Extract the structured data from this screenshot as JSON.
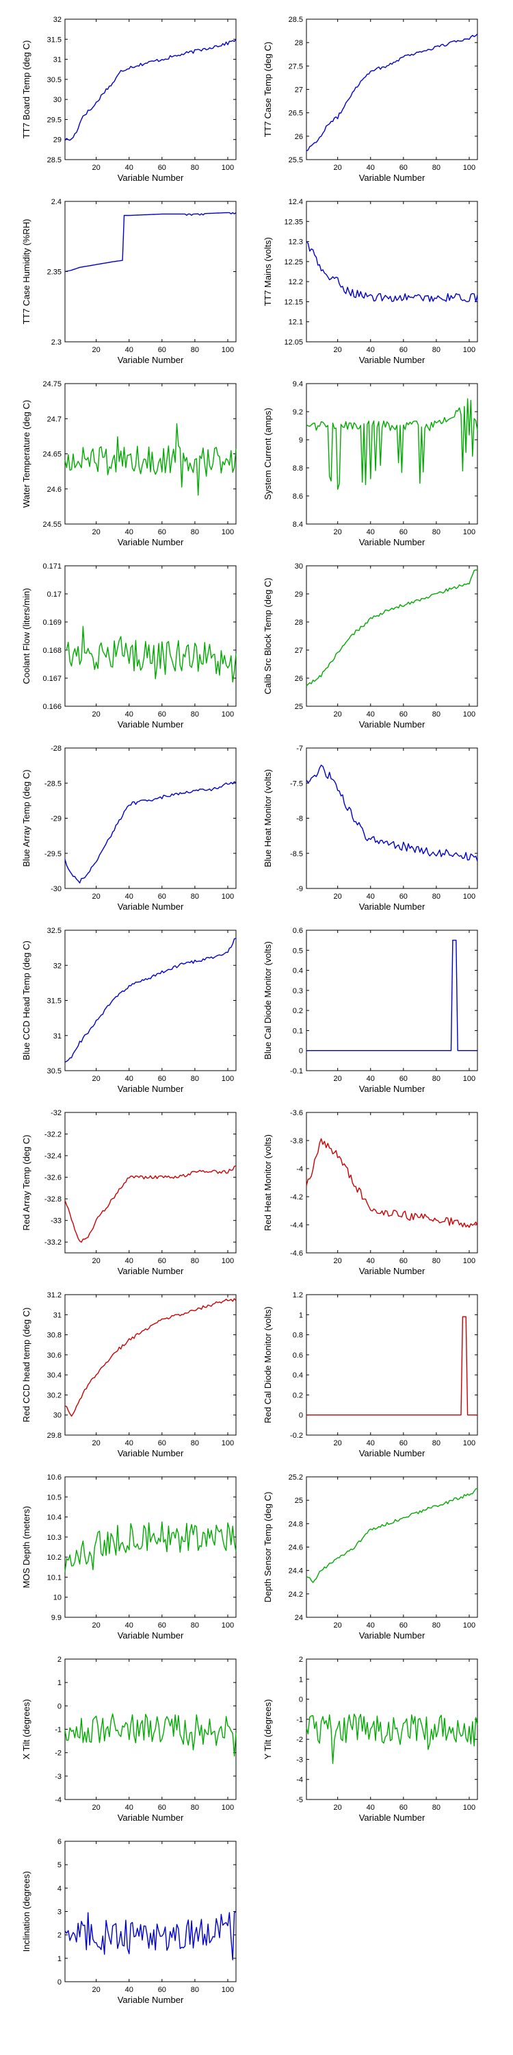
{
  "chart_data": [
    {
      "type": "line",
      "ylabel": "TT7 Board Temp (deg C)",
      "xlabel": "Variable Number",
      "xlim": [
        1,
        105
      ],
      "ylim": [
        28.5,
        32
      ],
      "xticks": [
        20,
        40,
        60,
        80,
        100
      ],
      "yticks": [
        28.5,
        29,
        29.5,
        30,
        30.5,
        31,
        31.5,
        32
      ],
      "color": "#0000cc",
      "pattern": "trend",
      "x": [
        1,
        5,
        8,
        12,
        18,
        25,
        30,
        35,
        40,
        60,
        80,
        100,
        105
      ],
      "y": [
        29.0,
        29.0,
        29.2,
        29.6,
        29.8,
        30.2,
        30.4,
        30.7,
        30.8,
        31.0,
        31.2,
        31.4,
        31.5
      ]
    },
    {
      "type": "line",
      "ylabel": "TT7 Case Temp (deg C)",
      "xlabel": "Variable Number",
      "xlim": [
        1,
        105
      ],
      "ylim": [
        25.5,
        28.5
      ],
      "xticks": [
        20,
        40,
        60,
        80,
        100
      ],
      "yticks": [
        25.5,
        26,
        26.5,
        27,
        27.5,
        28,
        28.5
      ],
      "color": "#0000cc",
      "pattern": "trend",
      "x": [
        1,
        10,
        15,
        20,
        25,
        30,
        35,
        40,
        50,
        60,
        70,
        80,
        90,
        100,
        105
      ],
      "y": [
        25.7,
        26.0,
        26.3,
        26.4,
        26.7,
        27.0,
        27.2,
        27.4,
        27.5,
        27.7,
        27.8,
        27.9,
        28.0,
        28.1,
        28.2
      ]
    },
    {
      "type": "line",
      "ylabel": "TT7 Case Humidity (%RH)",
      "xlabel": "Variable Number",
      "xlim": [
        1,
        105
      ],
      "ylim": [
        2.3,
        2.4
      ],
      "xticks": [
        20,
        40,
        60,
        80,
        100
      ],
      "yticks": [
        2.3,
        2.35,
        2.4
      ],
      "color": "#0000cc",
      "pattern": "step",
      "x": [
        1,
        5,
        10,
        20,
        30,
        36,
        37,
        40,
        60,
        80,
        100,
        105
      ],
      "y": [
        2.35,
        2.351,
        2.353,
        2.355,
        2.357,
        2.358,
        2.39,
        2.39,
        2.391,
        2.391,
        2.392,
        2.392
      ]
    },
    {
      "type": "line",
      "ylabel": "TT7 Mains  (volts)",
      "xlabel": "Variable Number",
      "xlim": [
        1,
        105
      ],
      "ylim": [
        12.05,
        12.4
      ],
      "xticks": [
        20,
        40,
        60,
        80,
        100
      ],
      "yticks": [
        12.05,
        12.1,
        12.15,
        12.2,
        12.25,
        12.3,
        12.35,
        12.4
      ],
      "color": "#0000cc",
      "pattern": "decay",
      "x": [
        1,
        5,
        10,
        15,
        20,
        25,
        30,
        35,
        40,
        60,
        80,
        100,
        105
      ],
      "y": [
        12.3,
        12.27,
        12.23,
        12.21,
        12.2,
        12.18,
        12.17,
        12.17,
        12.16,
        12.16,
        12.16,
        12.16,
        12.16
      ]
    },
    {
      "type": "line",
      "ylabel": "Water Temperature (deg C)",
      "xlabel": "Variable Number",
      "xlim": [
        1,
        105
      ],
      "ylim": [
        24.55,
        24.75
      ],
      "xticks": [
        20,
        40,
        60,
        80,
        100
      ],
      "yticks": [
        24.55,
        24.6,
        24.65,
        24.7,
        24.75
      ],
      "color": "#00aa00",
      "pattern": "noise",
      "x": [
        1,
        20,
        40,
        60,
        80,
        100,
        105
      ],
      "y": [
        24.64,
        24.64,
        24.64,
        24.64,
        24.64,
        24.64,
        24.64
      ]
    },
    {
      "type": "line",
      "ylabel": "System Current (amps)",
      "xlabel": "Variable Number",
      "xlim": [
        1,
        105
      ],
      "ylim": [
        8.4,
        9.4
      ],
      "xticks": [
        20,
        40,
        60,
        80,
        100
      ],
      "yticks": [
        8.4,
        8.6,
        8.8,
        9,
        9.2,
        9.4
      ],
      "color": "#00aa00",
      "pattern": "spikes-down",
      "x": [
        1,
        20,
        40,
        60,
        80,
        95,
        100,
        105
      ],
      "y": [
        9.1,
        9.1,
        9.1,
        9.1,
        9.1,
        9.2,
        9.3,
        9.1
      ]
    },
    {
      "type": "line",
      "ylabel": "Coolant Flow (liters/min)",
      "xlabel": "Variable Number",
      "xlim": [
        1,
        105
      ],
      "ylim": [
        0.166,
        0.171
      ],
      "xticks": [
        20,
        40,
        60,
        80,
        100
      ],
      "yticks": [
        0.166,
        0.167,
        0.168,
        0.169,
        0.17,
        0.171
      ],
      "color": "#00aa00",
      "pattern": "noise",
      "x": [
        1,
        20,
        40,
        60,
        80,
        100,
        105
      ],
      "y": [
        0.1678,
        0.1678,
        0.1678,
        0.1678,
        0.1678,
        0.1676,
        0.1672
      ]
    },
    {
      "type": "line",
      "ylabel": "Calib Src Block Temp (deg C)",
      "xlabel": "Variable Number",
      "xlim": [
        1,
        105
      ],
      "ylim": [
        25,
        30
      ],
      "xticks": [
        20,
        40,
        60,
        80,
        100
      ],
      "yticks": [
        25,
        26,
        27,
        28,
        29,
        30
      ],
      "color": "#00aa00",
      "pattern": "trend",
      "x": [
        1,
        10,
        20,
        30,
        40,
        50,
        60,
        70,
        80,
        90,
        100,
        103,
        105
      ],
      "y": [
        25.7,
        26.1,
        26.9,
        27.6,
        28.1,
        28.4,
        28.6,
        28.8,
        29.0,
        29.2,
        29.4,
        29.8,
        29.8
      ]
    },
    {
      "type": "line",
      "ylabel": "Blue Array Temp (deg C)",
      "xlabel": "Variable Number",
      "xlim": [
        1,
        105
      ],
      "ylim": [
        -30,
        -28
      ],
      "xticks": [
        20,
        40,
        60,
        80,
        100
      ],
      "yticks": [
        -30,
        -29.5,
        -29,
        -28.5,
        -28
      ],
      "color": "#0000cc",
      "pattern": "trend",
      "x": [
        1,
        5,
        10,
        15,
        20,
        25,
        30,
        35,
        40,
        50,
        60,
        70,
        80,
        90,
        100,
        105
      ],
      "y": [
        -29.6,
        -29.8,
        -29.9,
        -29.8,
        -29.6,
        -29.4,
        -29.2,
        -29.0,
        -28.8,
        -28.75,
        -28.7,
        -28.65,
        -28.6,
        -28.6,
        -28.5,
        -28.5
      ]
    },
    {
      "type": "line",
      "ylabel": "Blue Heat Monitor (volts)",
      "xlabel": "Variable Number",
      "xlim": [
        1,
        105
      ],
      "ylim": [
        -9,
        -7
      ],
      "xticks": [
        20,
        40,
        60,
        80,
        100
      ],
      "yticks": [
        -9,
        -8.5,
        -8,
        -7.5,
        -7
      ],
      "color": "#0000cc",
      "pattern": "decay",
      "x": [
        1,
        5,
        10,
        15,
        20,
        25,
        30,
        35,
        40,
        50,
        60,
        70,
        80,
        90,
        100,
        105
      ],
      "y": [
        -7.5,
        -7.4,
        -7.3,
        -7.4,
        -7.6,
        -7.8,
        -8.0,
        -8.2,
        -8.3,
        -8.35,
        -8.4,
        -8.45,
        -8.5,
        -8.5,
        -8.55,
        -8.6
      ]
    },
    {
      "type": "line",
      "ylabel": "Blue CCD Head Temp (deg C)",
      "xlabel": "Variable Number",
      "xlim": [
        1,
        105
      ],
      "ylim": [
        30.5,
        32.5
      ],
      "xticks": [
        20,
        40,
        60,
        80,
        100
      ],
      "yticks": [
        30.5,
        31,
        31.5,
        32,
        32.5
      ],
      "color": "#0000cc",
      "pattern": "trend",
      "x": [
        1,
        5,
        10,
        20,
        30,
        40,
        50,
        60,
        70,
        80,
        90,
        100,
        105
      ],
      "y": [
        30.6,
        30.7,
        30.9,
        31.2,
        31.5,
        31.7,
        31.8,
        31.9,
        32.0,
        32.05,
        32.1,
        32.2,
        32.4
      ]
    },
    {
      "type": "line",
      "ylabel": "Blue Cal Diode Monitor (volts)",
      "xlabel": "Variable Number",
      "xlim": [
        1,
        105
      ],
      "ylim": [
        -0.1,
        0.6
      ],
      "xticks": [
        20,
        40,
        60,
        80,
        100
      ],
      "yticks": [
        -0.1,
        0,
        0.1,
        0.2,
        0.3,
        0.4,
        0.5,
        0.6
      ],
      "color": "#0000cc",
      "pattern": "flat",
      "x": [
        1,
        89,
        90,
        91,
        92,
        93,
        105
      ],
      "y": [
        0,
        0,
        0.55,
        0.55,
        0.55,
        0,
        0
      ]
    },
    {
      "type": "line",
      "ylabel": "Red Array Temp (deg C)",
      "xlabel": "Variable Number",
      "xlim": [
        1,
        105
      ],
      "ylim": [
        -33.3,
        -32
      ],
      "xticks": [
        20,
        40,
        60,
        80,
        100
      ],
      "yticks": [
        -33.2,
        -33,
        -32.8,
        -32.6,
        -32.4,
        -32.2,
        -32
      ],
      "color": "#cc0000",
      "pattern": "trend",
      "x": [
        1,
        5,
        10,
        15,
        20,
        25,
        30,
        35,
        40,
        50,
        60,
        70,
        80,
        90,
        100,
        105
      ],
      "y": [
        -32.8,
        -33.0,
        -33.2,
        -33.15,
        -33.0,
        -32.9,
        -32.8,
        -32.7,
        -32.6,
        -32.6,
        -32.6,
        -32.6,
        -32.55,
        -32.55,
        -32.55,
        -32.5
      ]
    },
    {
      "type": "line",
      "ylabel": "Red Heat Monitor (volts)",
      "xlabel": "Variable Number",
      "xlim": [
        1,
        105
      ],
      "ylim": [
        -4.6,
        -3.6
      ],
      "xticks": [
        20,
        40,
        60,
        80,
        100
      ],
      "yticks": [
        -4.6,
        -4.4,
        -4.2,
        -4,
        -3.8,
        -3.6
      ],
      "color": "#cc0000",
      "pattern": "decay",
      "x": [
        1,
        5,
        10,
        15,
        20,
        25,
        30,
        35,
        40,
        50,
        60,
        70,
        80,
        90,
        100,
        105
      ],
      "y": [
        -4.1,
        -4.0,
        -3.8,
        -3.85,
        -3.9,
        -4.0,
        -4.1,
        -4.2,
        -4.3,
        -4.32,
        -4.33,
        -4.35,
        -4.36,
        -4.38,
        -4.4,
        -4.4
      ]
    },
    {
      "type": "line",
      "ylabel": "Red CCD head temp (deg C)",
      "xlabel": "Variable Number",
      "xlim": [
        1,
        105
      ],
      "ylim": [
        29.8,
        31.2
      ],
      "xticks": [
        20,
        40,
        60,
        80,
        100
      ],
      "yticks": [
        29.8,
        30,
        30.2,
        30.4,
        30.6,
        30.8,
        31,
        31.2
      ],
      "color": "#cc0000",
      "pattern": "trend",
      "x": [
        1,
        5,
        10,
        15,
        20,
        30,
        40,
        50,
        60,
        70,
        80,
        90,
        100,
        105
      ],
      "y": [
        30.1,
        30.0,
        30.15,
        30.3,
        30.4,
        30.6,
        30.75,
        30.85,
        30.95,
        31.0,
        31.05,
        31.1,
        31.15,
        31.15
      ]
    },
    {
      "type": "line",
      "ylabel": "Red Cal Diode Monitor (volts)",
      "xlabel": "Variable Number",
      "xlim": [
        1,
        105
      ],
      "ylim": [
        -0.2,
        1.2
      ],
      "xticks": [
        20,
        40,
        60,
        80,
        100
      ],
      "yticks": [
        -0.2,
        0,
        0.2,
        0.4,
        0.6,
        0.8,
        1,
        1.2
      ],
      "color": "#cc0000",
      "pattern": "flat",
      "x": [
        1,
        95,
        96,
        97,
        98,
        99,
        105
      ],
      "y": [
        0,
        0,
        0.98,
        0.98,
        0.98,
        0,
        0
      ]
    },
    {
      "type": "line",
      "ylabel": "MOS Depth  (meters)",
      "xlabel": "Variable Number",
      "xlim": [
        1,
        105
      ],
      "ylim": [
        9.9,
        10.6
      ],
      "xticks": [
        20,
        40,
        60,
        80,
        100
      ],
      "yticks": [
        9.9,
        10,
        10.1,
        10.2,
        10.3,
        10.4,
        10.5,
        10.6
      ],
      "color": "#00aa00",
      "pattern": "noise",
      "x": [
        1,
        10,
        20,
        40,
        60,
        80,
        100,
        105
      ],
      "y": [
        10.15,
        10.2,
        10.25,
        10.3,
        10.3,
        10.3,
        10.3,
        10.3
      ]
    },
    {
      "type": "line",
      "ylabel": "Depth Sensor Temp (deg C)",
      "xlabel": "Variable Number",
      "xlim": [
        1,
        105
      ],
      "ylim": [
        24,
        25.2
      ],
      "xticks": [
        20,
        40,
        60,
        80,
        100
      ],
      "yticks": [
        24,
        24.2,
        24.4,
        24.6,
        24.8,
        25,
        25.2
      ],
      "color": "#00aa00",
      "pattern": "trend",
      "x": [
        1,
        5,
        10,
        20,
        30,
        40,
        50,
        60,
        70,
        80,
        90,
        100,
        105
      ],
      "y": [
        24.35,
        24.3,
        24.4,
        24.5,
        24.6,
        24.75,
        24.8,
        24.85,
        24.9,
        24.95,
        25.0,
        25.05,
        25.1
      ]
    },
    {
      "type": "line",
      "ylabel": "X Tilt  (degrees)",
      "xlabel": "Variable Number",
      "xlim": [
        1,
        105
      ],
      "ylim": [
        -4,
        2
      ],
      "xticks": [
        20,
        40,
        60,
        80,
        100
      ],
      "yticks": [
        -4,
        -3,
        -2,
        -1,
        0,
        1,
        2
      ],
      "color": "#00aa00",
      "pattern": "noise",
      "x": [
        1,
        20,
        40,
        60,
        80,
        100,
        105
      ],
      "y": [
        -1,
        -1,
        -1,
        -1,
        -1,
        -1.2,
        -1.5
      ]
    },
    {
      "type": "line",
      "ylabel": "Y Tilt  (degrees)",
      "xlabel": "Variable Number",
      "xlim": [
        1,
        105
      ],
      "ylim": [
        -5,
        2
      ],
      "xticks": [
        20,
        40,
        60,
        80,
        100
      ],
      "yticks": [
        -5,
        -4,
        -3,
        -2,
        -1,
        0,
        1,
        2
      ],
      "color": "#00aa00",
      "pattern": "noise",
      "x": [
        1,
        20,
        40,
        60,
        80,
        100,
        105
      ],
      "y": [
        -1.5,
        -1.5,
        -1.5,
        -1.5,
        -1.5,
        -1.7,
        -1.5
      ]
    },
    {
      "type": "line",
      "ylabel": "Inclination  (degrees)",
      "xlabel": "Variable Number",
      "xlim": [
        1,
        105
      ],
      "ylim": [
        0,
        6
      ],
      "xticks": [
        20,
        40,
        60,
        80,
        100
      ],
      "yticks": [
        0,
        1,
        2,
        3,
        4,
        5,
        6
      ],
      "color": "#0000cc",
      "pattern": "noise",
      "x": [
        1,
        20,
        40,
        60,
        80,
        100,
        105
      ],
      "y": [
        2,
        2,
        2,
        2,
        2,
        2.3,
        2.5
      ]
    }
  ]
}
